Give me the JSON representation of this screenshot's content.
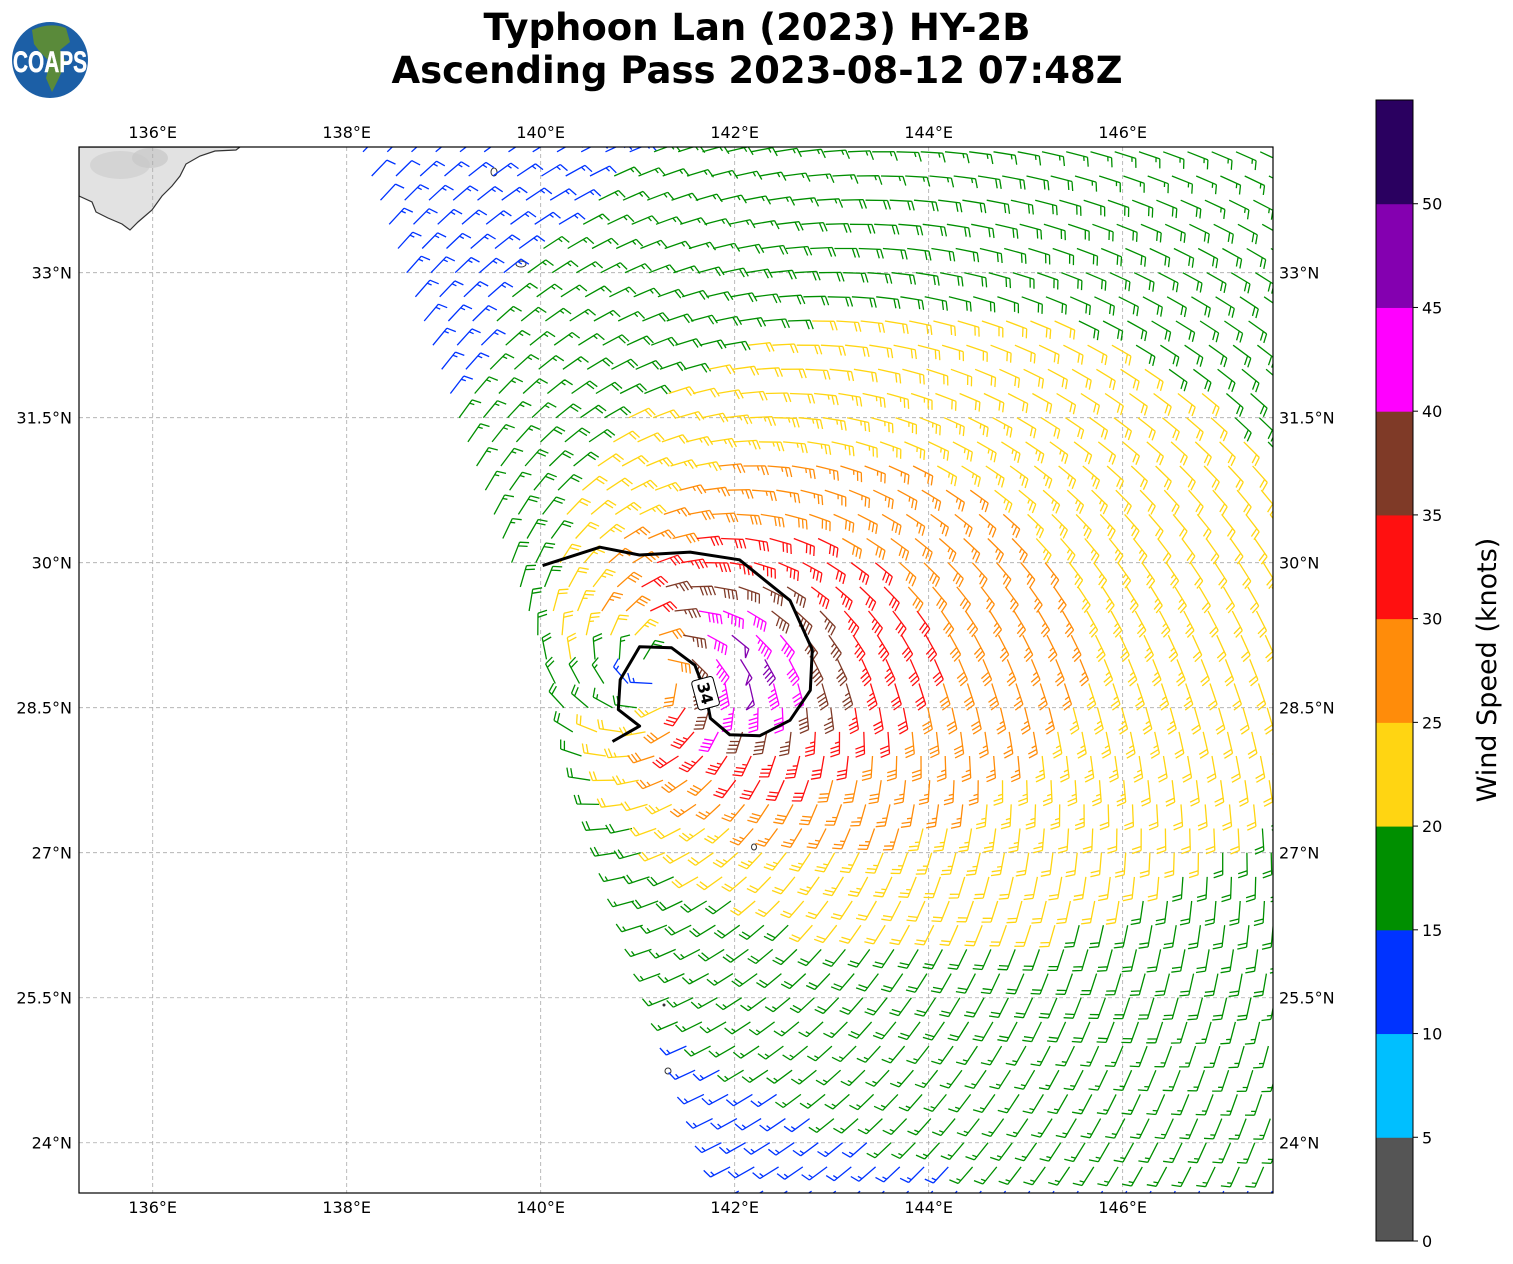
{
  "header": {
    "title_line1": "Typhoon Lan (2023) HY-2B",
    "title_line2": "Ascending Pass 2023-08-12 07:48Z"
  },
  "logo": {
    "text": "COAPS"
  },
  "axes": {
    "lon_ticks": [
      {
        "value": 136,
        "label": "136°E"
      },
      {
        "value": 138,
        "label": "138°E"
      },
      {
        "value": 140,
        "label": "140°E"
      },
      {
        "value": 142,
        "label": "142°E"
      },
      {
        "value": 144,
        "label": "144°E"
      },
      {
        "value": 146,
        "label": "146°E"
      }
    ],
    "lat_ticks": [
      {
        "value": 24,
        "label": "24°N"
      },
      {
        "value": 25.5,
        "label": "25.5°N"
      },
      {
        "value": 27,
        "label": "27°N"
      },
      {
        "value": 28.5,
        "label": "28.5°N"
      },
      {
        "value": 30,
        "label": "30°N"
      },
      {
        "value": 31.5,
        "label": "31.5°N"
      },
      {
        "value": 33,
        "label": "33°N"
      }
    ],
    "lon_range": [
      135.24,
      147.55
    ],
    "lat_range": [
      23.48,
      34.3
    ]
  },
  "colorbar": {
    "label": "Wind Speed (knots)",
    "range": [
      0,
      55
    ],
    "ticks": [
      "0",
      "5",
      "10",
      "15",
      "20",
      "25",
      "30",
      "35",
      "40",
      "45",
      "50"
    ],
    "colors": [
      "#555555",
      "#00bfff",
      "#0033ff",
      "#008f00",
      "#ffd512",
      "#ff8c0a",
      "#ff1010",
      "#7f3a27",
      "#ff00ff",
      "#8400b0",
      "#2a0060"
    ]
  },
  "chart_data": {
    "type": "wind_barbs",
    "title": "Typhoon Lan (2023) HY-2B Ascending Pass 2023-08-12 07:48Z",
    "units": "knots",
    "storm_center": {
      "lon": 141.2,
      "lat": 28.85
    },
    "max_wind_kt": 50,
    "radius_max_wind_deg": 0.8,
    "swath_left_edge": [
      {
        "lon": 138.1,
        "lat": 34.3
      },
      {
        "lon": 142.0,
        "lat": 23.48
      }
    ],
    "barb_spacing_deg": 0.25,
    "contour": {
      "level_label": "34",
      "points": [
        [
          140.02,
          29.97
        ],
        [
          140.61,
          30.16
        ],
        [
          141.02,
          30.08
        ],
        [
          141.54,
          30.11
        ],
        [
          142.05,
          30.03
        ],
        [
          142.57,
          29.61
        ],
        [
          142.8,
          29.1
        ],
        [
          142.78,
          28.68
        ],
        [
          142.57,
          28.37
        ],
        [
          142.26,
          28.21
        ],
        [
          141.95,
          28.22
        ],
        [
          141.75,
          28.39
        ],
        [
          141.7,
          28.65
        ],
        [
          141.59,
          28.94
        ],
        [
          141.35,
          29.12
        ],
        [
          141.02,
          29.13
        ],
        [
          140.82,
          28.79
        ],
        [
          140.8,
          28.48
        ],
        [
          141.02,
          28.31
        ],
        [
          140.74,
          28.15
        ]
      ]
    }
  }
}
